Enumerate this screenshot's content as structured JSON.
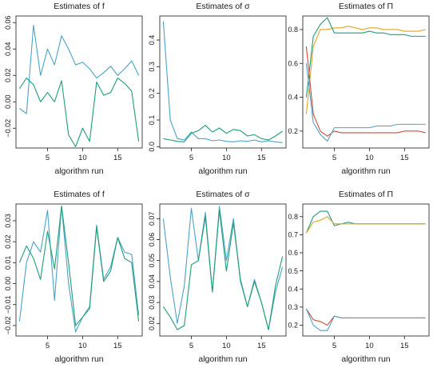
{
  "colors": {
    "blue": "#4aa3c9",
    "green": "#1f9e78",
    "orange": "#e0a526",
    "red": "#cf4a3a",
    "axis": "#1a1a1a"
  },
  "chart_data": [
    {
      "type": "line",
      "title": "Estimates of f",
      "xlabel": "algorithm run",
      "ylabel": "",
      "xlim": [
        0.5,
        18.5
      ],
      "ylim": [
        -0.035,
        0.065
      ],
      "xticks": [
        5,
        10,
        15
      ],
      "yticks": [
        -0.02,
        0.0,
        0.02,
        0.04,
        0.06
      ],
      "ytick_labels": [
        "−0.02",
        "0.00",
        "0.02",
        "0.04",
        "0.06"
      ],
      "x": [
        1,
        2,
        3,
        4,
        5,
        6,
        7,
        8,
        9,
        10,
        11,
        12,
        13,
        14,
        15,
        16,
        17,
        18
      ],
      "series": [
        {
          "color": "blue",
          "values": [
            -0.005,
            -0.009,
            0.058,
            0.02,
            0.04,
            0.028,
            0.05,
            0.04,
            0.028,
            0.03,
            0.025,
            0.018,
            0.022,
            0.027,
            0.02,
            0.025,
            0.031,
            0.02
          ]
        },
        {
          "color": "green",
          "values": [
            0.01,
            0.018,
            0.013,
            0.0,
            0.007,
            0.0,
            0.016,
            -0.025,
            -0.034,
            -0.02,
            -0.03,
            0.015,
            0.005,
            0.007,
            0.018,
            0.014,
            0.008,
            -0.03
          ]
        }
      ]
    },
    {
      "type": "line",
      "title": "Estimates of σ",
      "xlabel": "algorithm run",
      "ylabel": "",
      "xlim": [
        0.5,
        18.5
      ],
      "ylim": [
        -0.005,
        0.49
      ],
      "xticks": [
        5,
        10,
        15
      ],
      "yticks": [
        0.0,
        0.1,
        0.2,
        0.3,
        0.4
      ],
      "ytick_labels": [
        "0.0",
        "0.1",
        "0.2",
        "0.3",
        "0.4"
      ],
      "x": [
        1,
        2,
        3,
        4,
        5,
        6,
        7,
        8,
        9,
        10,
        11,
        12,
        13,
        14,
        15,
        16,
        17,
        18
      ],
      "series": [
        {
          "color": "blue",
          "values": [
            0.47,
            0.1,
            0.03,
            0.025,
            0.055,
            0.03,
            0.03,
            0.022,
            0.025,
            0.02,
            0.018,
            0.022,
            0.02,
            0.025,
            0.018,
            0.022,
            0.018,
            0.015
          ]
        },
        {
          "color": "green",
          "values": [
            0.03,
            0.025,
            0.02,
            0.018,
            0.05,
            0.06,
            0.08,
            0.055,
            0.07,
            0.05,
            0.065,
            0.06,
            0.04,
            0.045,
            0.03,
            0.025,
            0.04,
            0.058
          ]
        }
      ]
    },
    {
      "type": "line",
      "title": "Estimates of Π",
      "xlabel": "algorithm run",
      "ylabel": "",
      "xlim": [
        0.5,
        18.5
      ],
      "ylim": [
        0.1,
        0.88
      ],
      "xticks": [
        5,
        10,
        15
      ],
      "yticks": [
        0.2,
        0.4,
        0.6,
        0.8
      ],
      "ytick_labels": [
        "0.2",
        "0.4",
        "0.6",
        "0.8"
      ],
      "x": [
        1,
        2,
        3,
        4,
        5,
        6,
        7,
        8,
        9,
        10,
        11,
        12,
        13,
        14,
        15,
        16,
        17,
        18
      ],
      "series": [
        {
          "color": "orange",
          "values": [
            0.3,
            0.7,
            0.8,
            0.8,
            0.81,
            0.81,
            0.82,
            0.81,
            0.8,
            0.81,
            0.81,
            0.8,
            0.8,
            0.8,
            0.79,
            0.79,
            0.79,
            0.8
          ]
        },
        {
          "color": "green",
          "values": [
            0.4,
            0.76,
            0.83,
            0.87,
            0.78,
            0.78,
            0.78,
            0.78,
            0.78,
            0.79,
            0.78,
            0.78,
            0.77,
            0.77,
            0.77,
            0.76,
            0.76,
            0.76
          ]
        },
        {
          "color": "red",
          "values": [
            0.7,
            0.3,
            0.2,
            0.17,
            0.2,
            0.19,
            0.19,
            0.19,
            0.19,
            0.19,
            0.19,
            0.19,
            0.19,
            0.19,
            0.2,
            0.2,
            0.2,
            0.19
          ]
        },
        {
          "color": "blue",
          "values": [
            0.6,
            0.25,
            0.18,
            0.14,
            0.22,
            0.22,
            0.22,
            0.22,
            0.22,
            0.22,
            0.23,
            0.23,
            0.23,
            0.24,
            0.24,
            0.24,
            0.24,
            0.24
          ]
        }
      ]
    },
    {
      "type": "line",
      "title": "Estimates of f",
      "xlabel": "algorithm run",
      "ylabel": "",
      "xlim": [
        0.5,
        18.5
      ],
      "ylim": [
        -0.025,
        0.038
      ],
      "xticks": [
        5,
        10,
        15
      ],
      "yticks": [
        -0.02,
        -0.01,
        0.0,
        0.01,
        0.02,
        0.03
      ],
      "ytick_labels": [
        "−0.02",
        "−0.01",
        "0.00",
        "0.01",
        "0.02",
        "0.03"
      ],
      "x": [
        1,
        2,
        3,
        4,
        5,
        6,
        7,
        8,
        9,
        10,
        11,
        12,
        13,
        14,
        15,
        16,
        17,
        18
      ],
      "series": [
        {
          "color": "blue",
          "values": [
            -0.018,
            0.01,
            0.02,
            0.015,
            0.035,
            -0.008,
            0.037,
            0.0,
            -0.023,
            -0.016,
            -0.011,
            0.028,
            0.002,
            0.008,
            0.022,
            0.015,
            0.014,
            -0.015
          ]
        },
        {
          "color": "green",
          "values": [
            0.01,
            0.018,
            0.012,
            0.002,
            0.025,
            0.007,
            0.037,
            0.01,
            -0.02,
            -0.016,
            -0.012,
            0.027,
            0.001,
            0.006,
            0.022,
            0.012,
            0.01,
            -0.018
          ]
        }
      ]
    },
    {
      "type": "line",
      "title": "Estimates of σ",
      "xlabel": "algorithm run",
      "ylabel": "",
      "xlim": [
        0.5,
        18.5
      ],
      "ylim": [
        0.014,
        0.077
      ],
      "xticks": [
        5,
        10,
        15
      ],
      "yticks": [
        0.02,
        0.03,
        0.04,
        0.05,
        0.06,
        0.07
      ],
      "ytick_labels": [
        "0.02",
        "0.03",
        "0.04",
        "0.05",
        "0.06",
        "0.07"
      ],
      "x": [
        1,
        2,
        3,
        4,
        5,
        6,
        7,
        8,
        9,
        10,
        11,
        12,
        13,
        14,
        15,
        16,
        17,
        18
      ],
      "series": [
        {
          "color": "blue",
          "values": [
            0.07,
            0.042,
            0.02,
            0.038,
            0.075,
            0.05,
            0.073,
            0.035,
            0.076,
            0.05,
            0.07,
            0.04,
            0.028,
            0.041,
            0.03,
            0.017,
            0.035,
            0.047
          ]
        },
        {
          "color": "green",
          "values": [
            0.028,
            0.023,
            0.017,
            0.019,
            0.048,
            0.05,
            0.071,
            0.035,
            0.074,
            0.045,
            0.068,
            0.041,
            0.028,
            0.04,
            0.03,
            0.017,
            0.038,
            0.052
          ]
        }
      ]
    },
    {
      "type": "line",
      "title": "Estimates of Π",
      "xlabel": "algorithm run",
      "ylabel": "",
      "xlim": [
        0.5,
        18.5
      ],
      "ylim": [
        0.14,
        0.87
      ],
      "xticks": [
        5,
        10,
        15
      ],
      "yticks": [
        0.2,
        0.3,
        0.4,
        0.5,
        0.6,
        0.7,
        0.8
      ],
      "ytick_labels": [
        "0.2",
        "0.3",
        "0.4",
        "0.5",
        "0.6",
        "0.7",
        "0.8"
      ],
      "x": [
        1,
        2,
        3,
        4,
        5,
        6,
        7,
        8,
        9,
        10,
        11,
        12,
        13,
        14,
        15,
        16,
        17,
        18
      ],
      "series": [
        {
          "color": "green",
          "values": [
            0.71,
            0.8,
            0.83,
            0.83,
            0.75,
            0.76,
            0.77,
            0.76,
            0.76,
            0.76,
            0.76,
            0.76,
            0.76,
            0.76,
            0.76,
            0.76,
            0.76,
            0.76
          ]
        },
        {
          "color": "orange",
          "values": [
            0.71,
            0.77,
            0.78,
            0.8,
            0.76,
            0.76,
            0.76,
            0.76,
            0.76,
            0.76,
            0.76,
            0.76,
            0.76,
            0.76,
            0.76,
            0.76,
            0.76,
            0.76
          ]
        },
        {
          "color": "red",
          "values": [
            0.29,
            0.23,
            0.22,
            0.2,
            0.25,
            0.24,
            0.24,
            0.24,
            0.24,
            0.24,
            0.24,
            0.24,
            0.24,
            0.24,
            0.24,
            0.24,
            0.24,
            0.24
          ]
        },
        {
          "color": "blue",
          "values": [
            0.29,
            0.2,
            0.17,
            0.17,
            0.25,
            0.24,
            0.24,
            0.24,
            0.24,
            0.24,
            0.24,
            0.24,
            0.24,
            0.24,
            0.24,
            0.24,
            0.24,
            0.24
          ]
        }
      ]
    }
  ]
}
